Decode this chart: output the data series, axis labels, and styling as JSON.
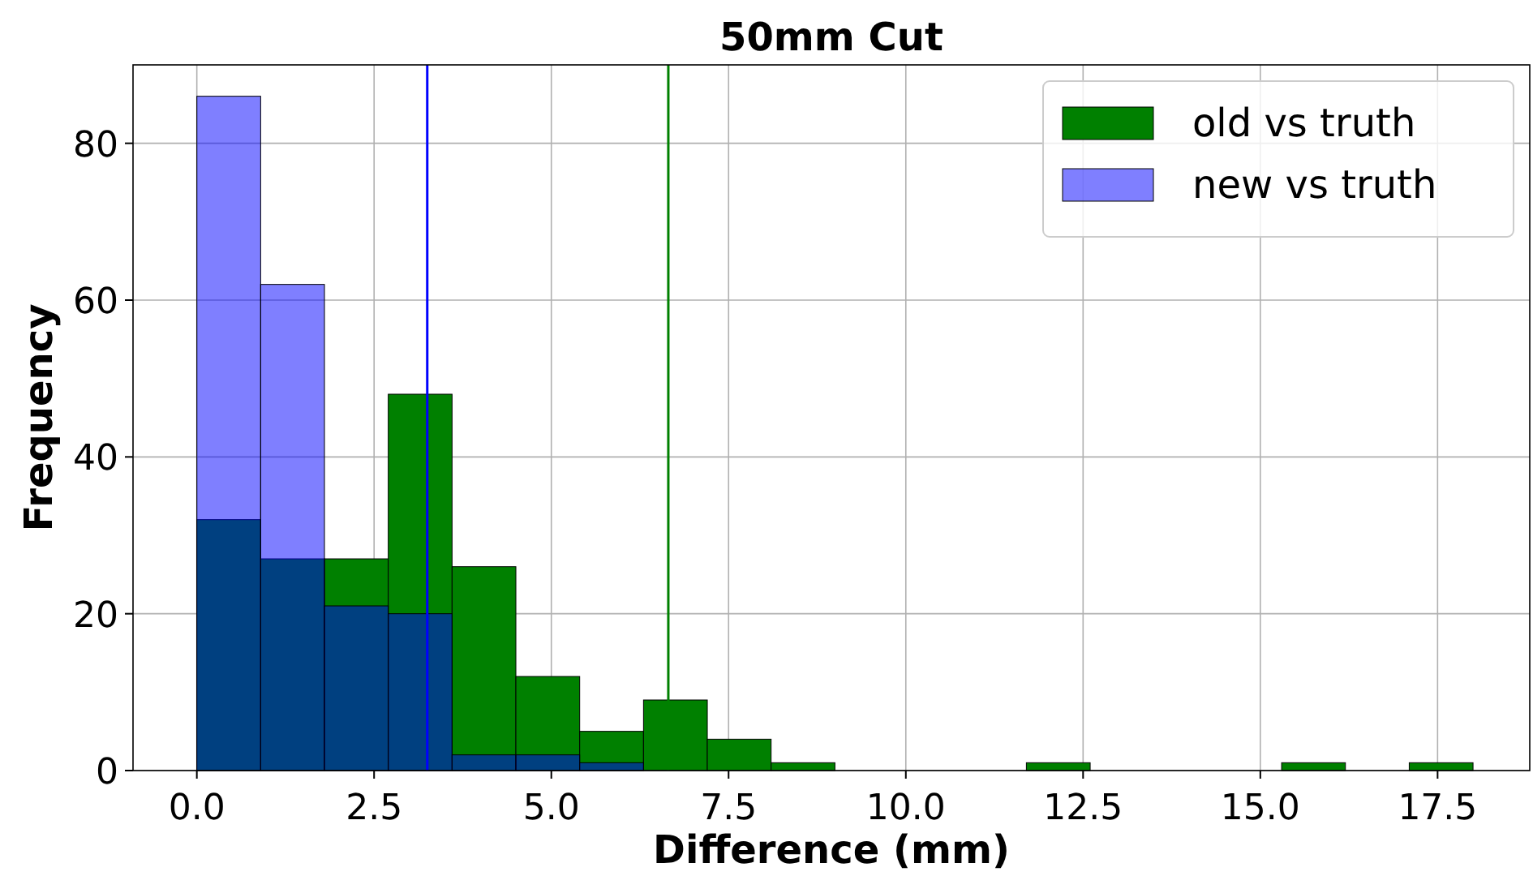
{
  "chart_data": {
    "type": "histogram",
    "title": "50mm Cut",
    "xlabel": "Difference (mm)",
    "ylabel": "Frequency",
    "bins": [
      0,
      0.9,
      1.8,
      2.7,
      3.6,
      4.5,
      5.4,
      6.3,
      7.2,
      8.1,
      9,
      9.9,
      10.8,
      11.7,
      12.6,
      13.5,
      14.4,
      15.3,
      16.2,
      17.1,
      18
    ],
    "series": [
      {
        "name": "old vs truth",
        "color": "#008000",
        "values": [
          32,
          27,
          27,
          48,
          26,
          12,
          5,
          9,
          4,
          1,
          0,
          0,
          0,
          1,
          0,
          0,
          0,
          1,
          0,
          1
        ]
      },
      {
        "name": "new vs truth",
        "color": "#0000ff",
        "values": [
          86,
          62,
          21,
          20,
          2,
          2,
          1,
          0,
          0,
          0,
          0,
          0,
          0,
          0,
          0,
          0,
          0,
          0,
          0,
          0
        ]
      }
    ],
    "ref_lines": [
      {
        "axis": "x",
        "value": 3.25,
        "color": "#0000ff"
      },
      {
        "axis": "x",
        "value": 6.65,
        "color": "#008000"
      }
    ],
    "xlim": [
      -0.9,
      18.8
    ],
    "xticks": [
      {
        "value": 0,
        "label": "0.0"
      },
      2.5,
      {
        "value": 5,
        "label": "5.0"
      },
      7.5,
      {
        "value": 10,
        "label": "10.0"
      },
      12.5,
      {
        "value": 15,
        "label": "15.0"
      },
      17.5
    ],
    "ylim": [
      0,
      90
    ],
    "yticks": [
      0,
      20,
      40,
      60,
      80
    ],
    "grid": true,
    "legend": "top right"
  }
}
